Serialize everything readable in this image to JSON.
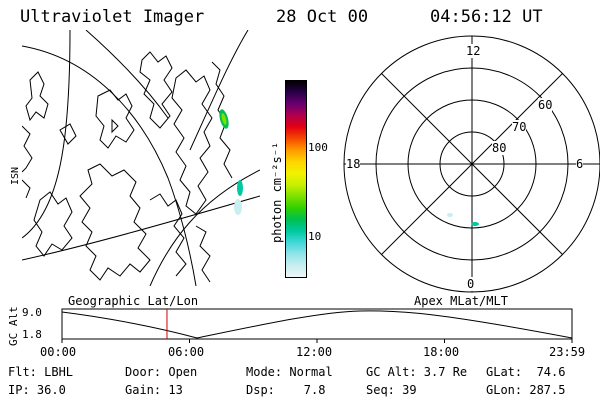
{
  "header": {
    "instrument": "Ultraviolet Imager",
    "date": "28 Oct 00",
    "time": "04:56:12 UT"
  },
  "colorbar": {
    "unit_label": "photon cm⁻²s⁻¹",
    "ticks": [
      "100",
      "10"
    ],
    "colors": [
      "#000000",
      "#2a004a",
      "#6a0070",
      "#b0004c",
      "#e30010",
      "#f44a00",
      "#ff9a00",
      "#ffd400",
      "#f2f200",
      "#c8f000",
      "#7ee000",
      "#32d000",
      "#00c050",
      "#00c8a0",
      "#40d8d8",
      "#90e4e8",
      "#c8eef0",
      "#eef6f8"
    ]
  },
  "polar_plot": {
    "mlt_labels": {
      "top": "12",
      "right": "6",
      "bottom": "0",
      "left": "18"
    },
    "lat_labels": [
      "60",
      "70",
      "80"
    ]
  },
  "timeline": {
    "left_title": "Geographic Lat/Lon",
    "right_title": "Apex MLat/MLT",
    "y_axis_label": "GC Alt",
    "y_ticks": [
      "9.0",
      "1.8"
    ],
    "x_ticks": [
      "00:00",
      "06:00",
      "12:00",
      "18:00",
      "23:59"
    ],
    "current_hour": 4.94
  },
  "footer": {
    "filter": "Flt: LBHL",
    "ip": "IP: 36.0",
    "door": "Door: Open",
    "gain": "Gain: 13",
    "mode": "Mode: Normal",
    "dsp": "Dsp:    7.8",
    "gcalt": "GC Alt: 3.7 Re",
    "seq": "Seq: 39",
    "glat": "GLat:  74.6",
    "glon": "GLon: 287.5"
  }
}
